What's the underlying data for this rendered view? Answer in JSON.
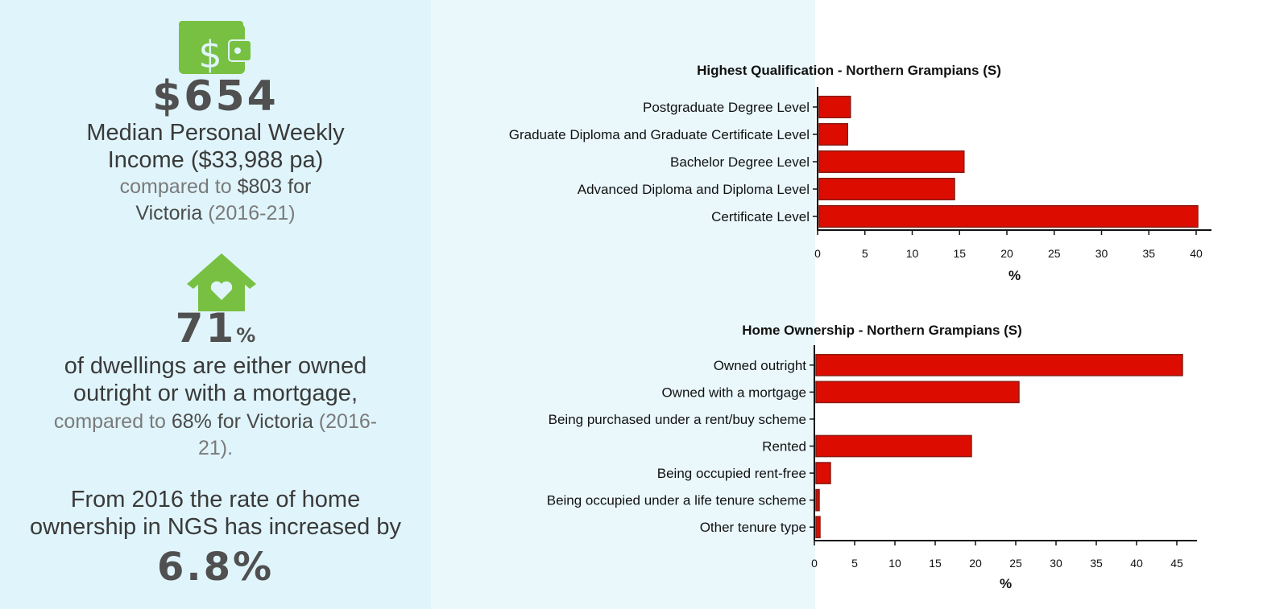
{
  "income": {
    "icon": "wallet-dollar-icon",
    "value": "$654",
    "line1": "Median Personal Weekly",
    "line2": "Income ($33,988 pa)",
    "compare_prefix": "compared to ",
    "compare_value": "$803 for",
    "compare_region": "Victoria",
    "compare_period": " (2016-21)"
  },
  "ownership": {
    "icon": "house-heart-icon",
    "value": "71",
    "unit": "%",
    "line1": "of dwellings are either owned",
    "line2": "outright or with a mortgage,",
    "compare_prefix": "compared to ",
    "compare_value": "68% for Victoria",
    "compare_period": " (2016-",
    "compare_period_end": "21)."
  },
  "growth": {
    "line1": "From 2016 the rate of home",
    "line2": "ownership in NGS has increased by",
    "value": "6.8%"
  },
  "colors": {
    "bar": "#dd0c00",
    "bar_stroke": "#8a1c14",
    "icon_green": "#78c041",
    "left_bg": "#e0f5fb",
    "mid_bg": "#eaf8fc"
  },
  "chart_data": [
    {
      "type": "bar",
      "orientation": "horizontal",
      "title": "Highest Qualification - Northern Grampians (S)",
      "categories": [
        "Postgraduate Degree Level",
        "Graduate Diploma and Graduate Certificate Level",
        "Bachelor Degree Level",
        "Advanced Diploma and Diploma Level",
        "Certificate Level"
      ],
      "values": [
        3.3,
        3.0,
        15.3,
        14.3,
        40.0
      ],
      "xlabel": "%",
      "ylabel": "",
      "xlim": [
        0,
        42
      ],
      "ticks": [
        0,
        5,
        10,
        15,
        20,
        25,
        30,
        35,
        40
      ],
      "grid": false
    },
    {
      "type": "bar",
      "orientation": "horizontal",
      "title": "Home Ownership - Northern Grampians (S)",
      "categories": [
        "Owned outright",
        "Owned with a mortgage",
        "Being purchased under a rent/buy scheme",
        "Rented",
        "Being occupied rent-free",
        "Being occupied under a life tenure scheme",
        "Other tenure type"
      ],
      "values": [
        45.5,
        25.2,
        0.0,
        19.3,
        1.8,
        0.4,
        0.5
      ],
      "xlabel": "%",
      "ylabel": "",
      "xlim": [
        0,
        47
      ],
      "ticks": [
        0,
        5,
        10,
        15,
        20,
        25,
        30,
        35,
        40,
        45
      ],
      "grid": false
    }
  ]
}
